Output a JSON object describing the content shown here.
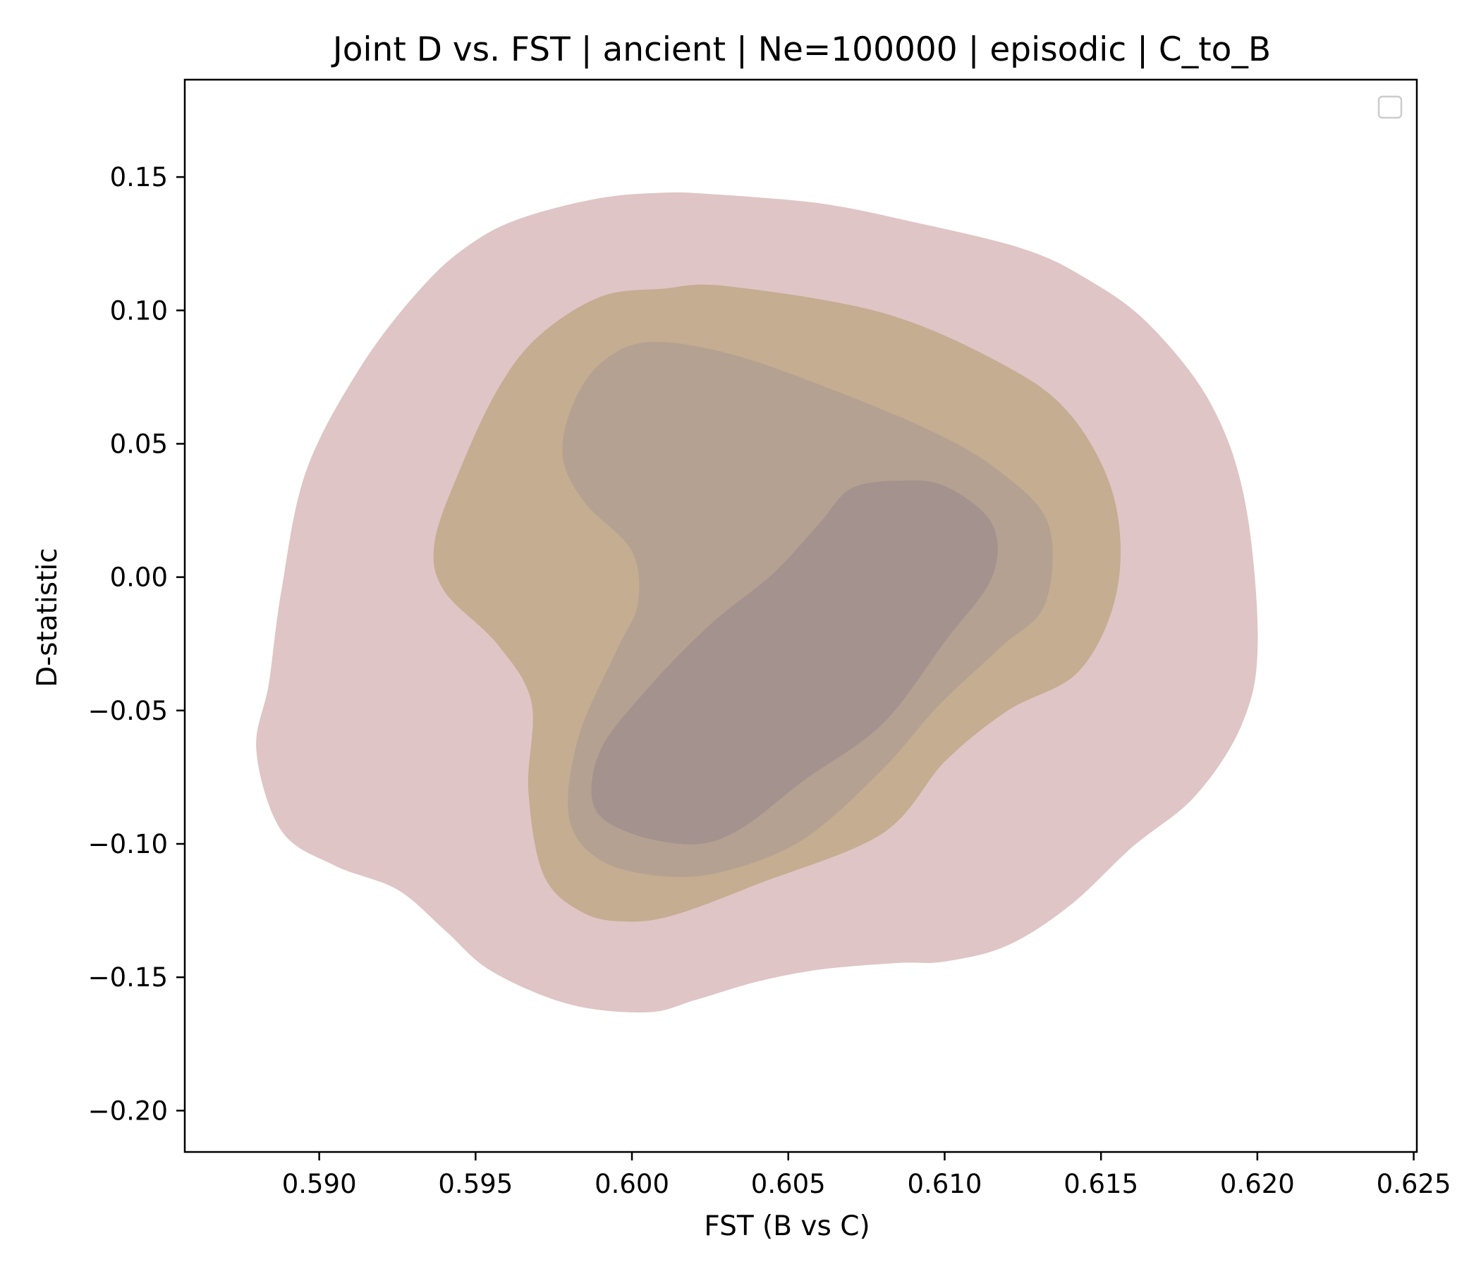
{
  "chart_data": {
    "type": "kde-contour",
    "title": "Joint D vs. FST | ancient | Ne=100000 | episodic | C_to_B",
    "xlabel": "FST (B vs C)",
    "ylabel": "D-statistic",
    "xlim": [
      0.5857,
      0.6251
    ],
    "ylim": [
      -0.2155,
      0.1865
    ],
    "x_ticks": [
      0.59,
      0.595,
      0.6,
      0.605,
      0.61,
      0.615,
      0.62,
      0.625
    ],
    "x_tick_labels": [
      "0.590",
      "0.595",
      "0.600",
      "0.605",
      "0.610",
      "0.615",
      "0.620",
      "0.625"
    ],
    "y_ticks": [
      0.15,
      0.1,
      0.05,
      0.0,
      -0.05,
      -0.1,
      -0.15,
      -0.2
    ],
    "y_tick_labels": [
      "0.15",
      "0.10",
      "0.05",
      "0.00",
      "−0.05",
      "−0.10",
      "−0.15",
      "−0.20"
    ],
    "legend": {
      "position": "top-right",
      "entries": []
    },
    "grid": false,
    "levels": [
      {
        "name": "outer-contour",
        "color": "#dfc5c5",
        "points": [
          [
            0.6025,
            0.1435
          ],
          [
            0.606,
            0.14
          ],
          [
            0.609,
            0.133
          ],
          [
            0.6125,
            0.123
          ],
          [
            0.6145,
            0.112
          ],
          [
            0.6165,
            0.095
          ],
          [
            0.6185,
            0.065
          ],
          [
            0.6196,
            0.028
          ],
          [
            0.62,
            -0.025
          ],
          [
            0.6195,
            -0.055
          ],
          [
            0.618,
            -0.082
          ],
          [
            0.616,
            -0.101
          ],
          [
            0.614,
            -0.123
          ],
          [
            0.612,
            -0.138
          ],
          [
            0.61,
            -0.144
          ],
          [
            0.6085,
            -0.1445
          ],
          [
            0.606,
            -0.147
          ],
          [
            0.604,
            -0.1515
          ],
          [
            0.602,
            -0.1585
          ],
          [
            0.6005,
            -0.163
          ],
          [
            0.598,
            -0.16
          ],
          [
            0.5955,
            -0.1475
          ],
          [
            0.594,
            -0.132
          ],
          [
            0.5925,
            -0.117
          ],
          [
            0.5905,
            -0.108
          ],
          [
            0.5888,
            -0.095
          ],
          [
            0.588,
            -0.065
          ],
          [
            0.5884,
            -0.04
          ],
          [
            0.5888,
            -0.005
          ],
          [
            0.5896,
            0.04
          ],
          [
            0.5914,
            0.08
          ],
          [
            0.5934,
            0.11
          ],
          [
            0.595,
            0.126
          ],
          [
            0.5966,
            0.135
          ],
          [
            0.599,
            0.142
          ],
          [
            0.601,
            0.144
          ]
        ]
      },
      {
        "name": "second-contour",
        "color": "#c4ad91",
        "points": [
          [
            0.603,
            0.109
          ],
          [
            0.608,
            0.099
          ],
          [
            0.6118,
            0.08
          ],
          [
            0.614,
            0.061
          ],
          [
            0.6154,
            0.03
          ],
          [
            0.6155,
            -0.005
          ],
          [
            0.6143,
            -0.035
          ],
          [
            0.612,
            -0.05
          ],
          [
            0.61,
            -0.069
          ],
          [
            0.608,
            -0.096
          ],
          [
            0.604,
            -0.115
          ],
          [
            0.6015,
            -0.126
          ],
          [
            0.6,
            -0.129
          ],
          [
            0.5985,
            -0.126
          ],
          [
            0.5972,
            -0.112
          ],
          [
            0.5967,
            -0.08
          ],
          [
            0.5968,
            -0.047
          ],
          [
            0.5957,
            -0.025
          ],
          [
            0.594,
            -0.005
          ],
          [
            0.5937,
            0.013
          ],
          [
            0.5945,
            0.04
          ],
          [
            0.5957,
            0.07
          ],
          [
            0.597,
            0.09
          ],
          [
            0.599,
            0.105
          ],
          [
            0.601,
            0.108
          ]
        ]
      },
      {
        "name": "third-contour",
        "color": "#b4a192",
        "points": [
          [
            0.6005,
            0.088
          ],
          [
            0.603,
            0.084
          ],
          [
            0.606,
            0.072
          ],
          [
            0.6095,
            0.055
          ],
          [
            0.6117,
            0.04
          ],
          [
            0.6133,
            0.02
          ],
          [
            0.6132,
            -0.01
          ],
          [
            0.6118,
            -0.026
          ],
          [
            0.6098,
            -0.048
          ],
          [
            0.608,
            -0.072
          ],
          [
            0.6055,
            -0.098
          ],
          [
            0.603,
            -0.11
          ],
          [
            0.601,
            -0.112
          ],
          [
            0.599,
            -0.106
          ],
          [
            0.598,
            -0.09
          ],
          [
            0.5983,
            -0.06
          ],
          [
            0.5995,
            -0.028
          ],
          [
            0.6002,
            -0.01
          ],
          [
            0.6,
            0.01
          ],
          [
            0.5985,
            0.028
          ],
          [
            0.5978,
            0.045
          ],
          [
            0.5981,
            0.064
          ],
          [
            0.599,
            0.08
          ]
        ]
      },
      {
        "name": "inner-contour",
        "color": "#a3928d",
        "points": [
          [
            0.6085,
            0.036
          ],
          [
            0.61,
            0.034
          ],
          [
            0.6115,
            0.02
          ],
          [
            0.6115,
            0.0
          ],
          [
            0.61,
            -0.024
          ],
          [
            0.608,
            -0.055
          ],
          [
            0.6055,
            -0.076
          ],
          [
            0.6035,
            -0.094
          ],
          [
            0.602,
            -0.1
          ],
          [
            0.6,
            -0.096
          ],
          [
            0.5988,
            -0.086
          ],
          [
            0.599,
            -0.065
          ],
          [
            0.6005,
            -0.042
          ],
          [
            0.6025,
            -0.018
          ],
          [
            0.6045,
            0.001
          ],
          [
            0.606,
            0.02
          ],
          [
            0.607,
            0.033
          ]
        ]
      }
    ]
  }
}
